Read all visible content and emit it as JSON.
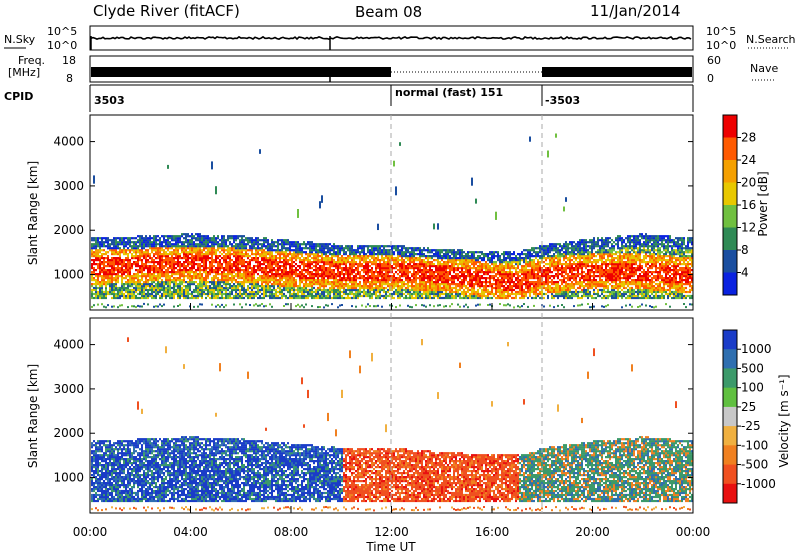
{
  "header": {
    "station": "Clyde River (fitACF)",
    "beam": "Beam 08",
    "date": "11/Jan/2014"
  },
  "panels": {
    "nsky": {
      "label": "N.Sky",
      "right_label": "N.Search",
      "left_ticks": [
        "10^5",
        "10^0"
      ],
      "right_ticks": [
        "10^5",
        "10^0"
      ]
    },
    "freq": {
      "label_line1": "Freq.",
      "label_line2": "[MHz]",
      "right_label": "Nave",
      "left_ticks": [
        "18",
        "8"
      ],
      "right_ticks": [
        "60",
        "0"
      ]
    },
    "cpid": {
      "label": "CPID",
      "segments": [
        "3503",
        "normal (fast) 151",
        "-3503"
      ]
    }
  },
  "power_colorbar": {
    "label": "Power [dB]",
    "ticks": [
      "28",
      "24",
      "20",
      "16",
      "12",
      "8",
      "4"
    ],
    "colors": [
      "#ee0000",
      "#ff5a00",
      "#f5a000",
      "#e8c800",
      "#70c040",
      "#2f8a55",
      "#1a4ea0",
      "#0a22e0"
    ]
  },
  "velocity_colorbar": {
    "label": "Velocity [m s⁻¹]",
    "ticks": [
      "1000",
      "500",
      "100",
      "25",
      "-25",
      "-100",
      "-500",
      "-1000"
    ],
    "colors": [
      "#1a3cc8",
      "#2f6fb0",
      "#3c9a6a",
      "#60c040",
      "#c8c8c8",
      "#f0b040",
      "#f08020",
      "#f05020",
      "#e81010"
    ]
  },
  "chart_data": [
    {
      "type": "heatmap",
      "name": "power",
      "ylabel": "Slant Range [km]",
      "xlabel": "",
      "ylim": [
        200,
        4600
      ],
      "y_ticks": [
        1000,
        2000,
        3000,
        4000
      ],
      "x_ticks": [
        "00:00",
        "04:00",
        "08:00",
        "12:00",
        "16:00",
        "20:00",
        "00:00"
      ],
      "scatter_band": {
        "x_hours": [
          0,
          2,
          4,
          6,
          8,
          10,
          12,
          14,
          16,
          17,
          18,
          20,
          22,
          24
        ],
        "center_km": [
          1150,
          1200,
          1250,
          1200,
          1100,
          1050,
          1050,
          1000,
          850,
          800,
          950,
          1050,
          1050,
          950
        ],
        "top_km": [
          1800,
          1850,
          1900,
          1850,
          1750,
          1650,
          1650,
          1550,
          1500,
          1500,
          1650,
          1800,
          1900,
          1800
        ]
      }
    },
    {
      "type": "heatmap",
      "name": "velocity",
      "ylabel": "Slant Range [km]",
      "xlabel": "Time UT",
      "ylim": [
        200,
        4600
      ],
      "y_ticks": [
        1000,
        2000,
        3000,
        4000
      ],
      "x_ticks": [
        "00:00",
        "04:00",
        "08:00",
        "12:00",
        "16:00",
        "20:00",
        "00:00"
      ]
    }
  ]
}
